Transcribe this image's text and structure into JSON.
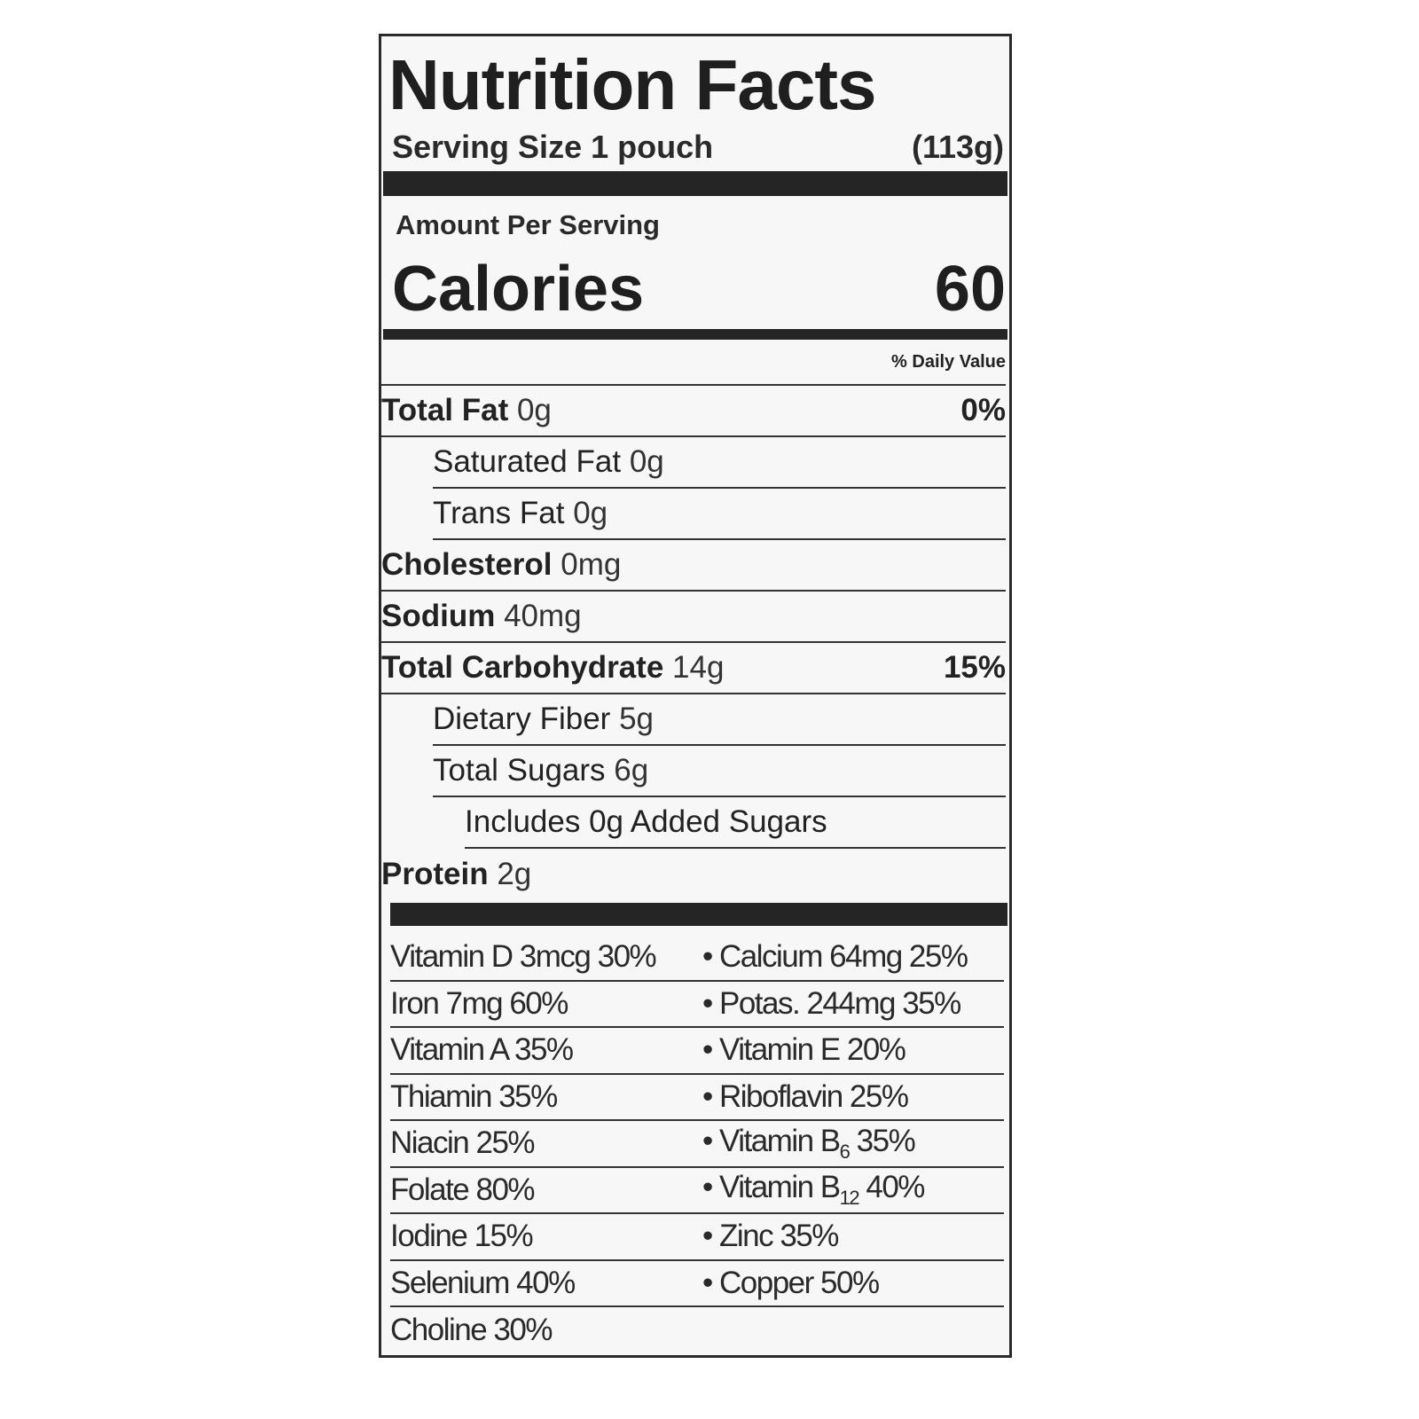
{
  "title": "Nutrition Facts",
  "serving": {
    "label": "Serving Size 1 pouch",
    "weight": "(113g)"
  },
  "amount_per_serving": "Amount Per Serving",
  "calories": {
    "label": "Calories",
    "value": "60"
  },
  "daily_value_header": "% Daily Value",
  "nutrients": [
    {
      "name": "Total Fat",
      "amount": "0g",
      "dv": "0%"
    },
    {
      "name": "Saturated Fat",
      "amount": "0g",
      "dv": ""
    },
    {
      "name": "Trans Fat",
      "amount": "0g",
      "dv": ""
    },
    {
      "name": "Cholesterol",
      "amount": "0mg",
      "dv": ""
    },
    {
      "name": "Sodium",
      "amount": "40mg",
      "dv": ""
    },
    {
      "name": "Total Carbohydrate",
      "amount": "14g",
      "dv": "15%"
    },
    {
      "name": "Dietary Fiber",
      "amount": "5g",
      "dv": ""
    },
    {
      "name": "Total Sugars",
      "amount": "6g",
      "dv": ""
    },
    {
      "name": "Includes 0g Added Sugars",
      "amount": "",
      "dv": ""
    },
    {
      "name": "Protein",
      "amount": "2g",
      "dv": ""
    }
  ],
  "vitamins": [
    {
      "left": "Vitamin D 3mcg 30%",
      "right": "Calcium 64mg 25%"
    },
    {
      "left": "Iron 7mg 60%",
      "right": "Potas. 244mg 35%"
    },
    {
      "left": "Vitamin A 35%",
      "right": "Vitamin E 20%"
    },
    {
      "left": "Thiamin 35%",
      "right": "Riboflavin 25%"
    },
    {
      "left": "Niacin 25%",
      "right_name": "Vitamin B",
      "right_sub": "6",
      "right_pct": "35%"
    },
    {
      "left": "Folate 80%",
      "right_name": "Vitamin B",
      "right_sub": "12",
      "right_pct": "40%"
    },
    {
      "left": "Iodine 15%",
      "right": "Zinc 35%"
    },
    {
      "left": "Selenium 40%",
      "right": "Copper 50%"
    },
    {
      "left": "Choline 30%"
    }
  ],
  "bullet": "•"
}
